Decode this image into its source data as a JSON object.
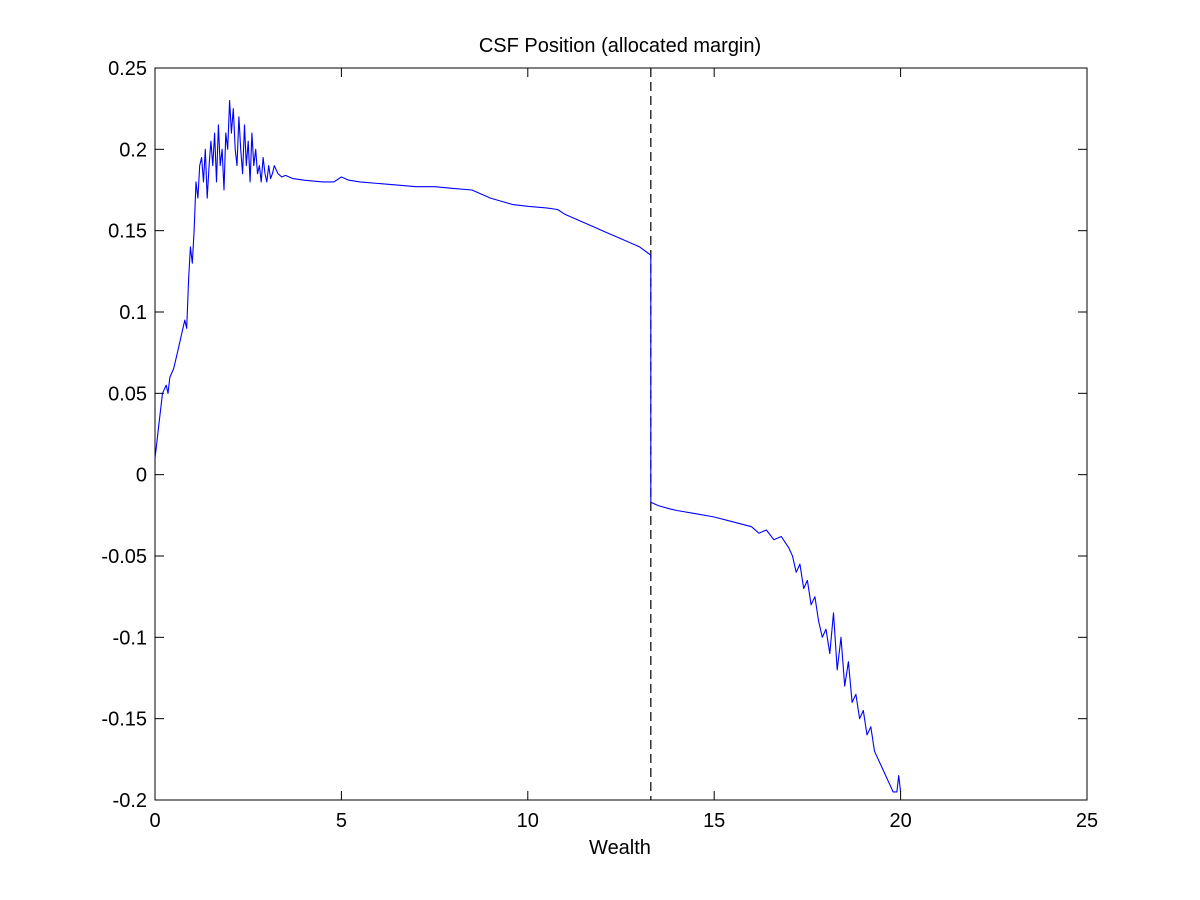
{
  "chart_data": {
    "type": "line",
    "title": "CSF Position (allocated margin)",
    "xlabel": "Wealth",
    "ylabel": "",
    "xlim": [
      0,
      25
    ],
    "ylim": [
      -0.2,
      0.25
    ],
    "x_ticks": [
      "0",
      "5",
      "10",
      "15",
      "20",
      "25"
    ],
    "y_ticks": [
      "0.25",
      "0.2",
      "0.15",
      "0.1",
      "0.05",
      "0",
      "-0.05",
      "-0.1",
      "-0.15",
      "-0.2"
    ],
    "grid": false,
    "legend": "none",
    "series_color": "#0000ff",
    "reference_line": {
      "x": 13.3,
      "style": "dashed",
      "color": "#000000"
    },
    "series": [
      {
        "x": [
          0,
          0.1,
          0.2,
          0.3,
          0.35,
          0.4,
          0.5,
          0.6,
          0.7,
          0.8,
          0.85,
          0.9,
          0.95,
          1.0,
          1.05,
          1.1,
          1.15,
          1.2,
          1.25,
          1.3,
          1.35,
          1.4,
          1.45,
          1.5,
          1.55,
          1.6,
          1.65,
          1.7,
          1.75,
          1.8,
          1.85,
          1.9,
          1.95,
          2.0,
          2.05,
          2.1,
          2.15,
          2.2,
          2.25,
          2.3,
          2.35,
          2.4,
          2.45,
          2.5,
          2.55,
          2.6,
          2.65,
          2.7,
          2.75,
          2.8,
          2.85,
          2.9,
          2.95,
          3.0,
          3.05,
          3.1,
          3.15,
          3.2,
          3.3,
          3.4,
          3.5,
          3.7,
          4.0,
          4.5,
          4.8,
          5.0,
          5.2,
          5.5,
          6.0,
          6.5,
          7.0,
          7.5,
          8.0,
          8.5,
          8.8,
          9.0,
          9.3,
          9.6,
          10.0,
          10.5,
          10.8,
          11.0,
          11.5,
          11.8,
          12.0,
          12.5,
          13.0,
          13.3
        ],
        "y": [
          0.01,
          0.03,
          0.05,
          0.055,
          0.05,
          0.06,
          0.065,
          0.075,
          0.085,
          0.095,
          0.09,
          0.12,
          0.14,
          0.13,
          0.15,
          0.18,
          0.17,
          0.19,
          0.195,
          0.18,
          0.2,
          0.17,
          0.19,
          0.205,
          0.19,
          0.21,
          0.18,
          0.215,
          0.19,
          0.2,
          0.175,
          0.21,
          0.2,
          0.23,
          0.21,
          0.225,
          0.2,
          0.19,
          0.22,
          0.2,
          0.185,
          0.215,
          0.19,
          0.205,
          0.18,
          0.21,
          0.19,
          0.2,
          0.185,
          0.19,
          0.18,
          0.195,
          0.185,
          0.18,
          0.19,
          0.182,
          0.185,
          0.19,
          0.185,
          0.183,
          0.184,
          0.182,
          0.181,
          0.18,
          0.18,
          0.183,
          0.181,
          0.18,
          0.179,
          0.178,
          0.177,
          0.177,
          0.176,
          0.175,
          0.172,
          0.17,
          0.168,
          0.166,
          0.165,
          0.164,
          0.163,
          0.16,
          0.155,
          0.152,
          0.15,
          0.145,
          0.14,
          0.135
        ]
      },
      {
        "x": [
          13.3,
          13.5,
          13.8,
          14.0,
          14.5,
          15.0,
          15.5,
          16.0,
          16.2,
          16.4,
          16.6,
          16.8,
          17.0,
          17.1,
          17.2,
          17.3,
          17.4,
          17.5,
          17.6,
          17.7,
          17.8,
          17.9,
          18.0,
          18.1,
          18.2,
          18.3,
          18.4,
          18.5,
          18.6,
          18.7,
          18.8,
          18.9,
          19.0,
          19.1,
          19.2,
          19.3,
          19.4,
          19.5,
          19.6,
          19.7,
          19.8,
          19.9,
          19.95,
          20.0
        ],
        "y": [
          -0.017,
          -0.019,
          -0.021,
          -0.022,
          -0.024,
          -0.026,
          -0.029,
          -0.032,
          -0.036,
          -0.034,
          -0.04,
          -0.038,
          -0.045,
          -0.05,
          -0.06,
          -0.055,
          -0.07,
          -0.065,
          -0.08,
          -0.075,
          -0.09,
          -0.1,
          -0.095,
          -0.11,
          -0.085,
          -0.12,
          -0.1,
          -0.13,
          -0.115,
          -0.14,
          -0.135,
          -0.15,
          -0.145,
          -0.16,
          -0.155,
          -0.17,
          -0.175,
          -0.18,
          -0.185,
          -0.19,
          -0.195,
          -0.195,
          -0.185,
          -0.195
        ]
      }
    ]
  }
}
